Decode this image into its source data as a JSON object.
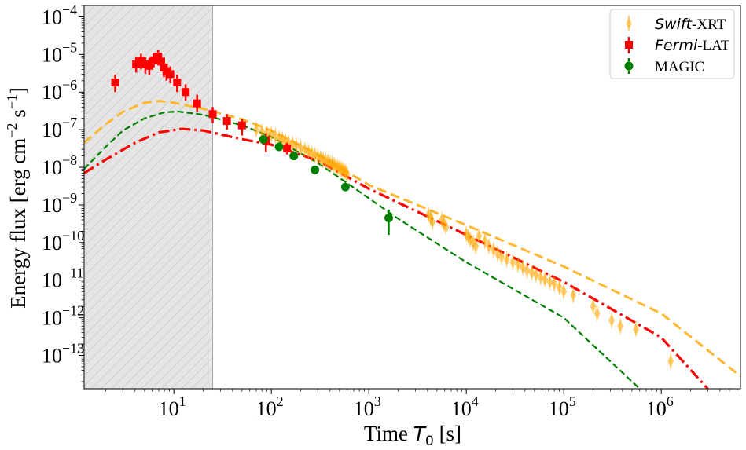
{
  "chart_data": {
    "type": "scatter",
    "xlabel": {
      "prefix": "Time ",
      "var": "T",
      "sub": "0",
      "suffix": " [s]"
    },
    "ylabel": {
      "text": "Energy flux [erg cm",
      "e1": "−2",
      "mid": " s",
      "e2": "−1",
      "end": "]"
    },
    "xscale": "log",
    "yscale": "log",
    "xlim": [
      1.2,
      6500000
    ],
    "ylim": [
      1.3e-14,
      0.0002
    ],
    "x_ticks": [
      {
        "value": 10,
        "base": "10",
        "exp": "1"
      },
      {
        "value": 100,
        "base": "10",
        "exp": "2"
      },
      {
        "value": 1000,
        "base": "10",
        "exp": "3"
      },
      {
        "value": 10000,
        "base": "10",
        "exp": "4"
      },
      {
        "value": 100000,
        "base": "10",
        "exp": "5"
      },
      {
        "value": 1000000,
        "base": "10",
        "exp": "6"
      }
    ],
    "y_ticks": [
      {
        "value": 1e-13,
        "base": "10",
        "exp": "−13"
      },
      {
        "value": 1e-12,
        "base": "10",
        "exp": "−12"
      },
      {
        "value": 1e-11,
        "base": "10",
        "exp": "−11"
      },
      {
        "value": 1e-10,
        "base": "10",
        "exp": "−10"
      },
      {
        "value": 1e-09,
        "base": "10",
        "exp": "−9"
      },
      {
        "value": 1e-08,
        "base": "10",
        "exp": "−8"
      },
      {
        "value": 1e-07,
        "base": "10",
        "exp": "−7"
      },
      {
        "value": 1e-06,
        "base": "10",
        "exp": "−6"
      },
      {
        "value": 1e-05,
        "base": "10",
        "exp": "−5"
      },
      {
        "value": 0.0001,
        "base": "10",
        "exp": "−4"
      }
    ],
    "shaded_region": {
      "x_from": 1.2,
      "x_to": 25,
      "fill": "#e5e5e5",
      "hatch": "#b0b0b0"
    },
    "legend": {
      "position": "top-right",
      "entries": [
        {
          "series": "swift",
          "italic": "Swift",
          "rest": "-XRT"
        },
        {
          "series": "fermi",
          "italic": "Fermi",
          "rest": "-LAT"
        },
        {
          "series": "magic",
          "italic": "",
          "rest": "MAGIC"
        }
      ]
    },
    "series": [
      {
        "id": "swift",
        "name": "Swift-XRT",
        "marker": "diamond",
        "color": "#ffa500",
        "points": [
          [
            70,
            1e-07
          ],
          [
            80,
            9e-08
          ],
          [
            90,
            8e-08
          ],
          [
            100,
            7.5e-08
          ],
          [
            110,
            6.8e-08
          ],
          [
            120,
            6e-08
          ],
          [
            130,
            5.5e-08
          ],
          [
            140,
            5e-08
          ],
          [
            150,
            4.6e-08
          ],
          [
            165,
            4.2e-08
          ],
          [
            180,
            3.8e-08
          ],
          [
            200,
            3.3e-08
          ],
          [
            220,
            2.9e-08
          ],
          [
            240,
            2.6e-08
          ],
          [
            260,
            2.3e-08
          ],
          [
            280,
            2.1e-08
          ],
          [
            300,
            1.9e-08
          ],
          [
            320,
            1.75e-08
          ],
          [
            340,
            1.6e-08
          ],
          [
            360,
            1.5e-08
          ],
          [
            380,
            1.4e-08
          ],
          [
            400,
            1.3e-08
          ],
          [
            420,
            1.22e-08
          ],
          [
            440,
            1.15e-08
          ],
          [
            460,
            1.08e-08
          ],
          [
            480,
            1e-08
          ],
          [
            500,
            9.5e-09
          ],
          [
            520,
            9e-09
          ],
          [
            540,
            8.5e-09
          ],
          [
            560,
            8e-09
          ],
          [
            580,
            7.5e-09
          ],
          [
            600,
            6.5e-09
          ],
          [
            4100,
            5.5e-10
          ],
          [
            4300,
            4.5e-10
          ],
          [
            4500,
            3.5e-10
          ],
          [
            5600,
            4e-10
          ],
          [
            5900,
            3.2e-10
          ],
          [
            6200,
            2.6e-10
          ],
          [
            10000,
            1.7e-10
          ],
          [
            10500,
            1.4e-10
          ],
          [
            11000,
            1.2e-10
          ],
          [
            11800,
            1e-10
          ],
          [
            12500,
            8e-11
          ],
          [
            13500,
            1.5e-10
          ],
          [
            15500,
            1.1e-10
          ],
          [
            17000,
            8e-11
          ],
          [
            19000,
            6.5e-11
          ],
          [
            21000,
            5e-11
          ],
          [
            23000,
            4.2e-11
          ],
          [
            26000,
            3.6e-11
          ],
          [
            30000,
            3e-11
          ],
          [
            34000,
            2.6e-11
          ],
          [
            38000,
            2.2e-11
          ],
          [
            42000,
            1.8e-11
          ],
          [
            47000,
            1.6e-11
          ],
          [
            52000,
            1.4e-11
          ],
          [
            58000,
            1.2e-11
          ],
          [
            64000,
            1.05e-11
          ],
          [
            72000,
            9e-12
          ],
          [
            80000,
            8e-12
          ],
          [
            90000,
            6.5e-12
          ],
          [
            100000,
            5e-12
          ],
          [
            125000,
            4e-12
          ],
          [
            200000,
            2e-12
          ],
          [
            220000,
            1.3e-12
          ],
          [
            310000,
            8.5e-13
          ],
          [
            380000,
            6e-13
          ],
          [
            550000,
            5e-13
          ],
          [
            1250000,
            7e-14
          ]
        ]
      },
      {
        "id": "fermi",
        "name": "Fermi-LAT",
        "marker": "square",
        "color": "#ff0000",
        "points": [
          [
            2.5,
            1.8e-06,
            2.9e-06,
            1e-06
          ],
          [
            4.1,
            5.5e-06,
            8.5e-06,
            3.3e-06
          ],
          [
            4.6,
            6.8e-06,
            1.05e-05,
            4e-06
          ],
          [
            5.1,
            5.5e-06,
            8.5e-06,
            3.1e-06
          ],
          [
            5.6,
            5e-06,
            8e-06,
            2.8e-06
          ],
          [
            6.2,
            7e-06,
            1.1e-05,
            4.5e-06
          ],
          [
            6.9,
            8.8e-06,
            1.3e-05,
            5.5e-06
          ],
          [
            7.4,
            6.5e-06,
            1e-05,
            4e-06
          ],
          [
            7.9,
            4.5e-06,
            7e-06,
            2.5e-06
          ],
          [
            8.4,
            3.6e-06,
            5.5e-06,
            2e-06
          ],
          [
            9.2,
            3e-06,
            4.8e-06,
            1.7e-06
          ],
          [
            10.8,
            1.8e-06,
            2.9e-06,
            1e-06
          ],
          [
            13.2,
            1e-06,
            1.6e-06,
            6e-07
          ],
          [
            17.3,
            5e-07,
            8.5e-07,
            3e-07
          ],
          [
            25,
            2.6e-07,
            4e-07,
            1.5e-07
          ],
          [
            35,
            1.7e-07,
            2.6e-07,
            1e-07
          ],
          [
            50,
            1.3e-07,
            1.9e-07,
            7e-08
          ],
          [
            88,
            5.2e-08,
            8e-08,
            2.5e-08
          ],
          [
            145,
            3.2e-08,
            4.5e-08,
            2.2e-08
          ]
        ]
      },
      {
        "id": "magic",
        "name": "MAGIC",
        "marker": "circle",
        "color": "#008000",
        "points": [
          [
            83,
            5.5e-08,
            7e-08,
            4.2e-08
          ],
          [
            120,
            3.5e-08,
            4.2e-08,
            2.8e-08
          ],
          [
            170,
            2e-08,
            2.4e-08,
            1.6e-08
          ],
          [
            280,
            8.5e-09,
            1e-08,
            7e-09
          ],
          [
            575,
            3e-09,
            3.6e-09,
            2.5e-09
          ],
          [
            1600,
            4.5e-10,
            7.5e-10,
            1.6e-10
          ]
        ]
      }
    ],
    "models": [
      {
        "id": "model-total",
        "color": "#ffb833",
        "dash": "12,6",
        "width": 3,
        "points": [
          [
            1.2,
            4.5e-08
          ],
          [
            2,
            1.4e-07
          ],
          [
            3,
            3e-07
          ],
          [
            5,
            5.2e-07
          ],
          [
            7,
            5.8e-07
          ],
          [
            10,
            5.2e-07
          ],
          [
            20,
            3.6e-07
          ],
          [
            50,
            1.9e-07
          ],
          [
            100,
            9.5e-08
          ],
          [
            300,
            2.2e-08
          ],
          [
            1000,
            3.4e-09
          ],
          [
            10000.0,
            2.9e-10
          ],
          [
            100000.0,
            2.3e-11
          ],
          [
            1000000.0,
            1.3e-12
          ],
          [
            6500000,
            2.8e-14
          ]
        ]
      },
      {
        "id": "model-green",
        "color": "#008000",
        "dash": "8,4",
        "width": 2.2,
        "points": [
          [
            1.2,
            9e-09
          ],
          [
            2,
            3.5e-08
          ],
          [
            3,
            9.5e-08
          ],
          [
            5,
            2e-07
          ],
          [
            8,
            2.9e-07
          ],
          [
            11,
            3.05e-07
          ],
          [
            20,
            2.5e-07
          ],
          [
            50,
            1.3e-07
          ],
          [
            100,
            6.5e-08
          ],
          [
            300,
            1.3e-08
          ],
          [
            600,
            3.8e-09
          ],
          [
            2000,
            4.3e-10
          ],
          [
            10000.0,
            3e-11
          ],
          [
            100000.0,
            1e-12
          ],
          [
            600000,
            1.3e-14
          ]
        ]
      },
      {
        "id": "model-red",
        "color": "#ff0000",
        "dash": "14,5,3,5",
        "width": 3.2,
        "points": [
          [
            1.2,
            7e-09
          ],
          [
            2,
            1.6e-08
          ],
          [
            4,
            4.5e-08
          ],
          [
            7,
            8.5e-08
          ],
          [
            12,
            1.05e-07
          ],
          [
            20,
            9.5e-08
          ],
          [
            50,
            5.6e-08
          ],
          [
            100,
            4e-08
          ],
          [
            300,
            1.5e-08
          ],
          [
            1000,
            2.7e-09
          ],
          [
            10000.0,
            1.6e-10
          ],
          [
            100000.0,
            9e-12
          ],
          [
            1000000.0,
            3e-13
          ],
          [
            3000000,
            1.3e-14
          ]
        ]
      }
    ]
  }
}
